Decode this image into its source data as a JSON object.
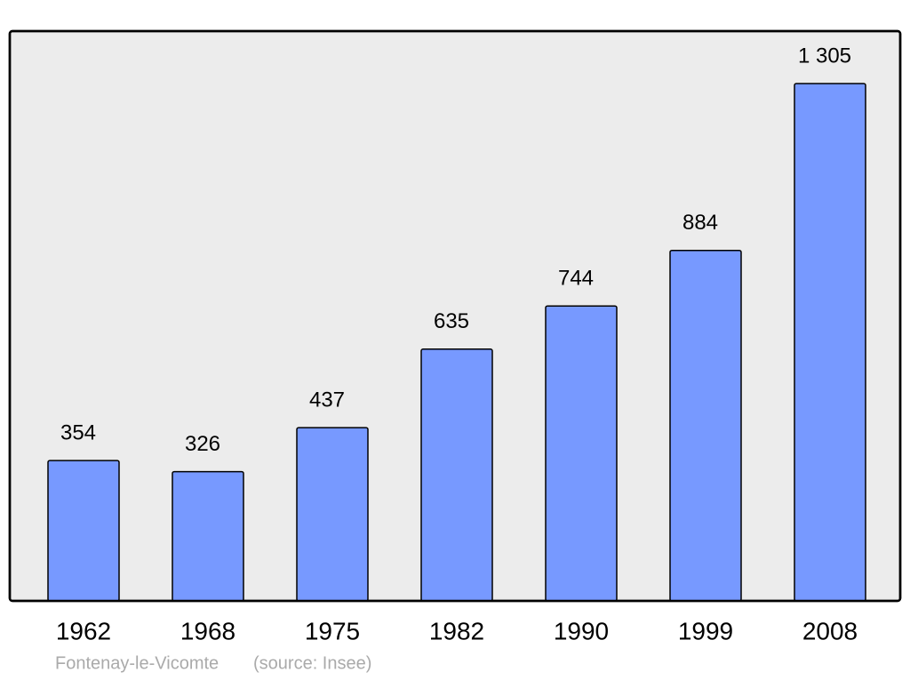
{
  "chart_data": {
    "type": "bar",
    "categories": [
      "1962",
      "1968",
      "1975",
      "1982",
      "1990",
      "1999",
      "2008"
    ],
    "values": [
      354,
      326,
      437,
      635,
      744,
      884,
      1305
    ],
    "value_labels": [
      "354",
      "326",
      "437",
      "635",
      "744",
      "884",
      "1 305"
    ],
    "color": "#7799ff",
    "notes": [
      "Fontenay-le-Vicomte",
      "(source: Insee)"
    ]
  }
}
